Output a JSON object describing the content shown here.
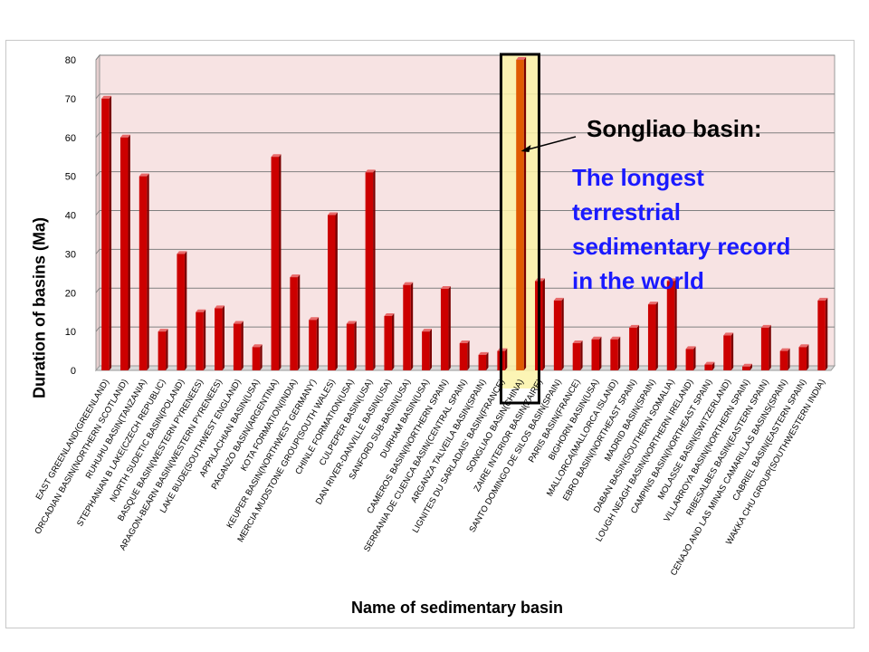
{
  "chart_data": {
    "type": "bar",
    "ylabel": "Duration of basins (Ma)",
    "xlabel": "Name of sedimentary basin",
    "ylim": [
      0,
      80
    ],
    "yticks": [
      0,
      10,
      20,
      30,
      40,
      50,
      60,
      70,
      80
    ],
    "grid": true,
    "highlight_index": 22,
    "colors": {
      "bar": "#cc0000",
      "bar_dark": "#7a0000",
      "bar_highlight": "#e05a00",
      "plot_bg": "#f7e3e3",
      "highlight_bg": "#fbf3a8",
      "highlight_border": "#000000",
      "callout_title": "#000000",
      "callout_text": "#1a1aff"
    },
    "categories": [
      "EAST GREENLAND(GREENLAND)",
      "ORCADIAN BASIN(NORTHERN SCOTLAND)",
      "RUHUHU BASIN(TANZANIA)",
      "STEPHANIAN B LAKE(CZECH REPUBLIC)",
      "NORTH SUDETIC BASIN(POLAND)",
      "BASQUE BASIN(WESTERN PYRENEES)",
      "ARAGON-BEARN BASIN(WESTERN PYRENEES)",
      "LAKE BUDE(SOUTHWEST ENGLAND)",
      "APPALACHIAN BASIN(USA)",
      "PAGANZO BASIN(ARGENTINA)",
      "KOTA FORMATION(INDIA)",
      "KEUPER BASIN(NORTHWEST GERMANY)",
      "MERCIA MUDSTONE GROUP(SOUTH WALES)",
      "CHINLE FORMATION(USA)",
      "CULPEPER BASIN(USA)",
      "DAN RIVER-DANVILLE BASIN(USA)",
      "SANFORD SUB-BASIN(USA)",
      "DURHAM BASIN(USA)",
      "CAMEROS BASIN(NORTHERN SPAIN)",
      "SERRANIA DE CUENCA BASIN(CENTRAL SPAIN)",
      "ARGANZA TALVEILA BASIN(SPAIN)",
      "LIGNITES DU SARLADAIS' BASIN(FRANCE)",
      "SONGLIAO BASIN(CHINA)",
      "ZAIRE INTERIOR BASIN(ZAIRE)",
      "SANTO DOMINGO DE SILOS BASIN(SPAIN)",
      "PARIS BASIN(FRANCE)",
      "BIGHORN BASIN(USA)",
      "MALLORCA(MALLORCA ISLAND)",
      "EBRO BASIN(NORTHEAST SPAIN)",
      "MADRID BASIN(SPAIN)",
      "DABAN BASIN(SOUTHERN SOMALIA)",
      "LOUGH NEAGH BASIN(NORTHERN IRELAND)",
      "CAMPINS BASIN(NORTHEAST SPAIN)",
      "MOLASSE BASIN(SWITZERLAND)",
      "VILLARROYA BASIN(NORTHERN SPAIN)",
      "RIBESALBES BASIN(EASTERN SPAIN)",
      "CENAJO AND LAS MINAS CAMARILLAS BASINS(SPAIN)",
      "CABRIEL BASIN(EASTERN SPAIN)",
      "WAKKA CHU GROUP(SOUTHWESTERN INDIA)"
    ],
    "values": [
      70,
      60,
      50,
      10,
      30,
      15,
      16,
      12,
      6,
      55,
      24,
      13,
      40,
      12,
      51,
      14,
      22,
      10,
      21,
      7,
      4,
      5,
      80,
      23,
      18,
      7,
      8,
      8,
      11,
      17,
      23,
      5.5,
      1.5,
      9,
      1,
      11,
      5,
      6,
      18
    ]
  },
  "annotation": {
    "title": "Songliao basin:",
    "lines": [
      "The longest",
      "terrestrial",
      "sedimentary record",
      "in the world"
    ]
  }
}
